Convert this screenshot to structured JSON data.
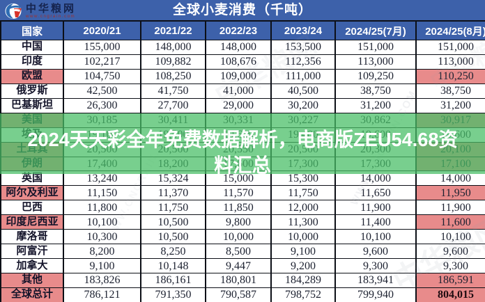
{
  "meta": {
    "description": "Screen-capture of a Chinese grain-market data table (global wheat consumption) with a translucent green promo banner overlaid"
  },
  "colors": {
    "blue": "#3d61aa",
    "pink": "#e88b8b",
    "green_overlay": "rgba(73,190,103,0.74)",
    "header_text": "#ffffff",
    "cell_text": "#1c2130"
  },
  "logo": {
    "name": "中华粮网",
    "url": "www.cngrain.com",
    "icon": "globe-swoosh-icon"
  },
  "title": "全球小麦消费（千吨）",
  "banner": {
    "full_text": "2024天天彩全年免费数据解析，电商版ZEU54.68资料汇总",
    "line1": "2024天天彩全年免费数据解析，电商版ZEU54.68资",
    "line2": "料汇总"
  },
  "watermarks": {
    "wm_cn": "中华粮网",
    "wm_url": "WWW.CNGRAIN.COM"
  },
  "chart_data": {
    "type": "table",
    "title": "全球小麦消费（千吨）",
    "columns": [
      "国家",
      "2020/21",
      "2021/22",
      "2022/23",
      "2023/24",
      "2024/25(7月)",
      "2024/25(8月)"
    ],
    "highlight_note": "rows whose 2024/25(8月) estimate changed vs 2024/25(7月) have the country cell and the last cell shaded salmon pink",
    "rows": [
      {
        "country": "中国",
        "values": [
          "155,000",
          "148,000",
          "148,000",
          "153,500",
          "151,000",
          "151,000"
        ],
        "highlight": false
      },
      {
        "country": "印度",
        "values": [
          "102,217",
          "109,882",
          "108,676",
          "112,356",
          "113,000",
          "113,000"
        ],
        "highlight": false
      },
      {
        "country": "欧盟",
        "values": [
          "104,750",
          "108,250",
          "109,000",
          "111,000",
          "109,250",
          "110,250"
        ],
        "highlight": true
      },
      {
        "country": "俄罗斯",
        "values": [
          "42,500",
          "41,750",
          "41,000",
          "40,500",
          "38,750",
          "38,750"
        ],
        "highlight": false
      },
      {
        "country": "巴基斯坦",
        "values": [
          "26,300",
          "27,700",
          "29,000",
          "30,200",
          "31,200",
          "31,200"
        ],
        "highlight": false
      },
      {
        "country": "美国",
        "values": [
          "30,185",
          "30,411",
          "30,331",
          "30,227",
          "30,862",
          "30,917"
        ],
        "highlight": true
      },
      {
        "country": "埃及",
        "values": [
          "19,100",
          "19,500",
          "19,600",
          "19,400",
          "19,600",
          "19,600"
        ],
        "highlight": false
      },
      {
        "country": "土耳其",
        "values": [
          "20,500",
          "20,500",
          "20,550",
          "20,500",
          "20,300",
          "20,100"
        ],
        "highlight": true
      },
      {
        "country": "伊朗",
        "values": [
          "17,400",
          "18,200",
          "17,600",
          "17,300",
          "17,300",
          "17,100"
        ],
        "highlight": true
      },
      {
        "country": "英国",
        "values": [
          "13,240",
          "15,324",
          "15,000",
          "15,300",
          "14,000",
          "14,000"
        ],
        "highlight": false
      },
      {
        "country": "阿尔及利亚",
        "values": [
          "11,150",
          "11,370",
          "11,570",
          "11,750",
          "11,650",
          "11,950"
        ],
        "highlight": true
      },
      {
        "country": "巴西",
        "values": [
          "11,800",
          "11,750",
          "11,850",
          "12,000",
          "11,900",
          "11,900"
        ],
        "highlight": false
      },
      {
        "country": "印度尼西亚",
        "values": [
          "10,100",
          "10,500",
          "9,800",
          "11,300",
          "11,400",
          "11,600"
        ],
        "highlight": true
      },
      {
        "country": "摩洛哥",
        "values": [
          "10,300",
          "10,500",
          "10,000",
          "10,000",
          "10,100",
          "10,100"
        ],
        "highlight": false
      },
      {
        "country": "阿富汗",
        "values": [
          "8,200",
          "8,250",
          "8,500",
          "9,100",
          "9,600",
          "9,600"
        ],
        "highlight": false
      },
      {
        "country": "加拿大",
        "values": [
          "9,100",
          "10,148",
          "9,447",
          "9,200",
          "9,300",
          "9,300"
        ],
        "highlight": false
      },
      {
        "country": "其他",
        "values": [
          "183,826",
          "186,161",
          "180,801",
          "184,289",
          "183,941",
          "186,591"
        ],
        "highlight": true
      },
      {
        "country": "全球总计",
        "values": [
          "786,121",
          "791,350",
          "790,587",
          "798,752",
          "799,940",
          "804,015"
        ],
        "highlight": true,
        "total": true
      }
    ]
  }
}
